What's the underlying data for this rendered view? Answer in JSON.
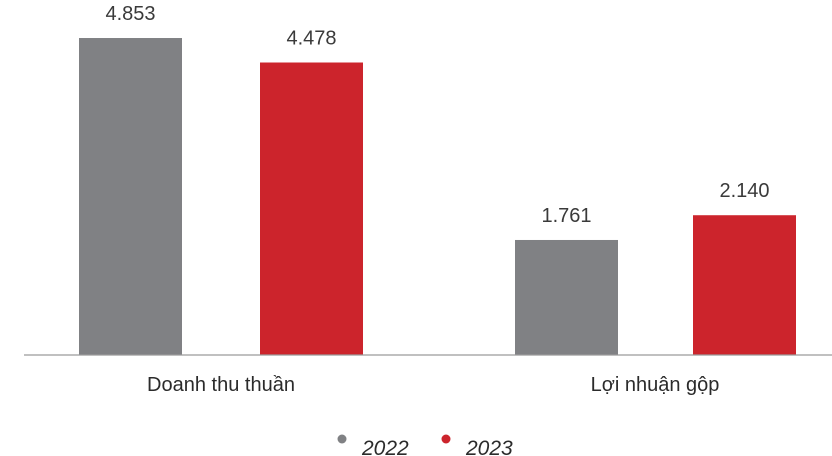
{
  "chart_data": {
    "type": "bar",
    "categories": [
      "Doanh thu thuần",
      "Lợi nhuận gộp"
    ],
    "series": [
      {
        "name": "2022",
        "values": [
          4853,
          1761
        ],
        "labels": [
          "4.853",
          "1.761"
        ],
        "color": "#808184"
      },
      {
        "name": "2023",
        "values": [
          4478,
          2140
        ],
        "labels": [
          "4.478",
          "2.140"
        ],
        "color": "#cc242c"
      }
    ],
    "ylim": [
      0,
      5190
    ],
    "legend_position": "bottom-center",
    "grid": false
  }
}
